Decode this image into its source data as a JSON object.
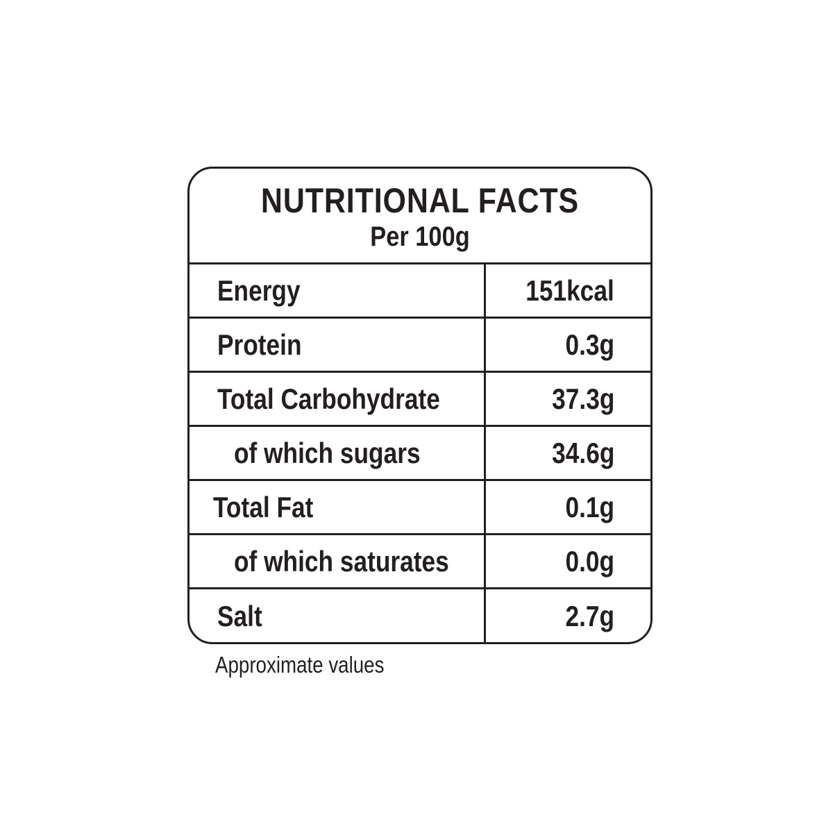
{
  "header": {
    "title": "NUTRITIONAL FACTS",
    "subtitle": "Per 100g"
  },
  "rows": [
    {
      "label": "Energy",
      "value": "151kcal"
    },
    {
      "label": "Protein",
      "value": "0.3g"
    },
    {
      "label": "Total Carbohydrate",
      "value": "37.3g"
    },
    {
      "label": "of which sugars",
      "value": "34.6g"
    },
    {
      "label": "Total Fat",
      "value": "0.1g"
    },
    {
      "label": "of which saturates",
      "value": "0.0g"
    },
    {
      "label": "Salt",
      "value": "2.7g"
    }
  ],
  "footnote": "Approximate values"
}
